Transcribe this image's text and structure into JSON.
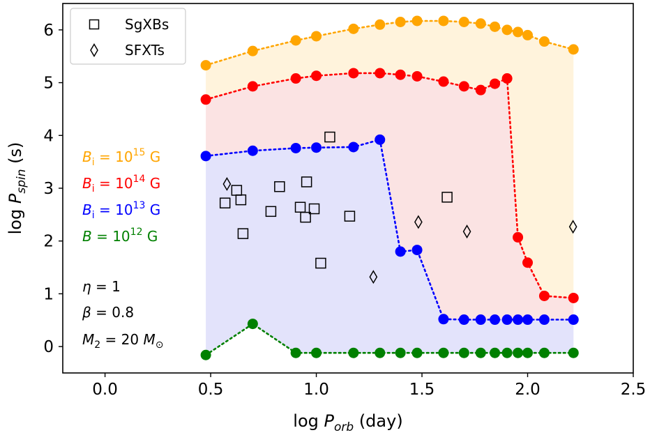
{
  "chart_data": {
    "type": "scatter",
    "xlabel": {
      "pre": "log ",
      "var": "P",
      "sub": "orb",
      "post": " (day)"
    },
    "ylabel": {
      "pre": "log ",
      "var": "P",
      "sub": "spin",
      "post": " (s)"
    },
    "xlim": [
      -0.2,
      2.5
    ],
    "ylim": [
      -0.5,
      6.5
    ],
    "xticks": [
      0.0,
      0.5,
      1.0,
      1.5,
      2.0,
      2.5
    ],
    "xtick_labels": [
      "0.0",
      "0.5",
      "1.0",
      "1.5",
      "2.0",
      "2.5"
    ],
    "yticks": [
      0,
      1,
      2,
      3,
      4,
      5,
      6
    ],
    "ytick_labels": [
      "0",
      "1",
      "2",
      "3",
      "4",
      "5",
      "6"
    ],
    "grid": false,
    "legend_position": "top-left",
    "legend": [
      {
        "label": "SgXBs",
        "marker": "square"
      },
      {
        "label": "SFXTs",
        "marker": "diamond"
      }
    ],
    "model_curves": [
      {
        "color": "#FFA500",
        "fill": "#FFF3DC",
        "label_var": "B",
        "label_sub": "i",
        "label_exp": "15",
        "label_unit": "G",
        "x": [
          0.477,
          0.699,
          0.903,
          1.0,
          1.176,
          1.301,
          1.398,
          1.477,
          1.602,
          1.699,
          1.778,
          1.845,
          1.903,
          1.954,
          2.0,
          2.079,
          2.217
        ],
        "y": [
          5.33,
          5.6,
          5.8,
          5.88,
          6.02,
          6.1,
          6.15,
          6.17,
          6.17,
          6.15,
          6.12,
          6.06,
          6.0,
          5.96,
          5.9,
          5.78,
          5.63
        ]
      },
      {
        "color": "#FF0000",
        "fill": "#FBE3E3",
        "label_var": "B",
        "label_sub": "i",
        "label_exp": "14",
        "label_unit": "G",
        "x": [
          0.477,
          0.699,
          0.903,
          1.0,
          1.176,
          1.301,
          1.398,
          1.477,
          1.602,
          1.699,
          1.778,
          1.845,
          1.903,
          1.954,
          2.0,
          2.079,
          2.217
        ],
        "y": [
          4.68,
          4.93,
          5.08,
          5.13,
          5.18,
          5.18,
          5.15,
          5.12,
          5.02,
          4.93,
          4.86,
          4.98,
          5.08,
          2.07,
          1.59,
          0.96,
          0.92
        ]
      },
      {
        "color": "#0000FF",
        "fill": "#E3E3FB",
        "label_var": "B",
        "label_sub": "i",
        "label_exp": "13",
        "label_unit": "G",
        "x": [
          0.477,
          0.699,
          0.903,
          1.0,
          1.176,
          1.301,
          1.398,
          1.477,
          1.602,
          1.699,
          1.778,
          1.845,
          1.903,
          1.954,
          2.0,
          2.079,
          2.217
        ],
        "y": [
          3.61,
          3.71,
          3.76,
          3.77,
          3.78,
          3.92,
          1.8,
          1.83,
          0.52,
          0.51,
          0.51,
          0.51,
          0.51,
          0.51,
          0.51,
          0.51,
          0.51
        ]
      },
      {
        "color": "#008000",
        "fill": null,
        "label_var": "B",
        "label_sub": "",
        "label_exp": "12",
        "label_unit": "G",
        "x": [
          0.477,
          0.699,
          0.903,
          1.0,
          1.176,
          1.301,
          1.398,
          1.477,
          1.602,
          1.699,
          1.778,
          1.845,
          1.903,
          1.954,
          2.0,
          2.079,
          2.217
        ],
        "y": [
          -0.16,
          0.43,
          -0.12,
          -0.12,
          -0.12,
          -0.12,
          -0.12,
          -0.12,
          -0.12,
          -0.12,
          -0.12,
          -0.12,
          -0.12,
          -0.12,
          -0.12,
          -0.12,
          -0.12
        ]
      }
    ],
    "sgxbs": {
      "x": [
        0.568,
        0.623,
        0.643,
        0.653,
        0.785,
        0.826,
        0.924,
        0.954,
        0.949,
        0.99,
        1.021,
        1.064,
        1.158,
        1.619
      ],
      "y": [
        2.72,
        2.96,
        2.78,
        2.14,
        2.56,
        3.03,
        2.64,
        3.12,
        2.45,
        2.61,
        1.58,
        3.97,
        2.47,
        2.83
      ]
    },
    "sfxts": {
      "x": [
        0.577,
        1.27,
        1.483,
        1.713,
        2.215
      ],
      "y": [
        3.08,
        1.32,
        2.36,
        2.18,
        2.27
      ]
    },
    "param_labels": [
      {
        "var": "η",
        "sub": "",
        "rhs": " = 1"
      },
      {
        "var": "β",
        "sub": "",
        "rhs": " = 0.8"
      },
      {
        "var": "M",
        "sub": "2",
        "rhs": " = 20 ",
        "rhs_var": "M",
        "rhs_sub": "⊙"
      }
    ]
  }
}
